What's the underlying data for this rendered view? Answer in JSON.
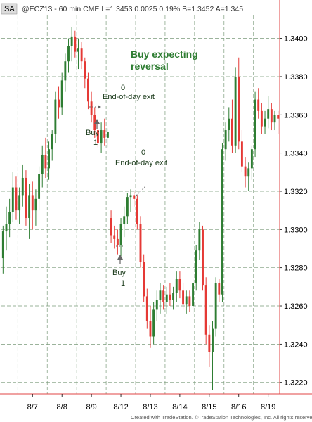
{
  "header": {
    "symbol_tag": "SA",
    "info": "@ECZ13 - 60 min  CME  L=1.3453  0.0025  0.19%  B=1.3452  A=1.345"
  },
  "footer": "Created with TradeStation. ©TradeStation Technologies, Inc. All rights reserved.",
  "colors": {
    "up": "#2e7d32",
    "down": "#e53935",
    "grid": "#7a9a7a",
    "border": "#e24444"
  },
  "chart_data": {
    "type": "candlestick",
    "title": "",
    "xlabel": "",
    "ylabel": "",
    "ylim": [
      1.3214,
      1.3412
    ],
    "yticks": [
      "1.3400",
      "1.3380",
      "1.3360",
      "1.3340",
      "1.3320",
      "1.3300",
      "1.3280",
      "1.3260",
      "1.3240",
      "1.3220"
    ],
    "ytick_values": [
      1.34,
      1.338,
      1.336,
      1.334,
      1.332,
      1.33,
      1.328,
      1.326,
      1.324,
      1.322
    ],
    "grid": true,
    "xticks": [
      "8/7",
      "8/8",
      "8/9",
      "8/12",
      "8/13",
      "8/14",
      "8/15",
      "8/16",
      "8/19"
    ],
    "xtick_index": [
      9,
      18,
      27,
      36,
      45,
      54,
      63,
      72,
      81
    ],
    "day_separators_index": [
      5,
      14,
      23,
      32,
      41,
      50,
      59,
      68,
      77,
      85
    ],
    "candles": [
      {
        "o": 1.3285,
        "h": 1.3302,
        "l": 1.3277,
        "c": 1.3299
      },
      {
        "o": 1.3299,
        "h": 1.3312,
        "l": 1.3289,
        "c": 1.3303
      },
      {
        "o": 1.3303,
        "h": 1.3316,
        "l": 1.3296,
        "c": 1.3309
      },
      {
        "o": 1.3309,
        "h": 1.333,
        "l": 1.3304,
        "c": 1.3322
      },
      {
        "o": 1.3322,
        "h": 1.3328,
        "l": 1.3305,
        "c": 1.331
      },
      {
        "o": 1.331,
        "h": 1.3322,
        "l": 1.3303,
        "c": 1.3318
      },
      {
        "o": 1.3318,
        "h": 1.3334,
        "l": 1.3312,
        "c": 1.3327
      },
      {
        "o": 1.3327,
        "h": 1.3331,
        "l": 1.3302,
        "c": 1.3306
      },
      {
        "o": 1.3306,
        "h": 1.3324,
        "l": 1.3295,
        "c": 1.3318
      },
      {
        "o": 1.3318,
        "h": 1.3325,
        "l": 1.33,
        "c": 1.331
      },
      {
        "o": 1.331,
        "h": 1.3321,
        "l": 1.3302,
        "c": 1.3316
      },
      {
        "o": 1.3316,
        "h": 1.3333,
        "l": 1.331,
        "c": 1.3329
      },
      {
        "o": 1.3329,
        "h": 1.3344,
        "l": 1.3322,
        "c": 1.3339
      },
      {
        "o": 1.3339,
        "h": 1.3348,
        "l": 1.3327,
        "c": 1.3332
      },
      {
        "o": 1.3332,
        "h": 1.3346,
        "l": 1.3326,
        "c": 1.3342
      },
      {
        "o": 1.3342,
        "h": 1.3352,
        "l": 1.3336,
        "c": 1.335
      },
      {
        "o": 1.335,
        "h": 1.3372,
        "l": 1.3345,
        "c": 1.3368
      },
      {
        "o": 1.3368,
        "h": 1.3375,
        "l": 1.3358,
        "c": 1.3364
      },
      {
        "o": 1.3364,
        "h": 1.3382,
        "l": 1.336,
        "c": 1.3378
      },
      {
        "o": 1.3378,
        "h": 1.3392,
        "l": 1.3372,
        "c": 1.3388
      },
      {
        "o": 1.3388,
        "h": 1.34,
        "l": 1.3382,
        "c": 1.3396
      },
      {
        "o": 1.3396,
        "h": 1.3406,
        "l": 1.3388,
        "c": 1.3401
      },
      {
        "o": 1.3401,
        "h": 1.3404,
        "l": 1.339,
        "c": 1.3393
      },
      {
        "o": 1.3393,
        "h": 1.34,
        "l": 1.3384,
        "c": 1.3395
      },
      {
        "o": 1.3395,
        "h": 1.3398,
        "l": 1.3384,
        "c": 1.3388
      },
      {
        "o": 1.3388,
        "h": 1.339,
        "l": 1.3374,
        "c": 1.3379
      },
      {
        "o": 1.3379,
        "h": 1.3382,
        "l": 1.3363,
        "c": 1.3367
      },
      {
        "o": 1.3367,
        "h": 1.3372,
        "l": 1.3356,
        "c": 1.336
      },
      {
        "o": 1.336,
        "h": 1.3364,
        "l": 1.3348,
        "c": 1.3352
      },
      {
        "o": 1.3352,
        "h": 1.3356,
        "l": 1.3343,
        "c": 1.3345
      },
      {
        "o": 1.3345,
        "h": 1.3356,
        "l": 1.334,
        "c": 1.3352
      },
      {
        "o": 1.3352,
        "h": 1.3358,
        "l": 1.3344,
        "c": 1.3348
      },
      {
        "o": 1.3348,
        "h": 1.3353,
        "l": 1.3343,
        "c": 1.3351
      },
      {
        "o": 1.3306,
        "h": 1.331,
        "l": 1.3293,
        "c": 1.3297
      },
      {
        "o": 1.3297,
        "h": 1.3302,
        "l": 1.329,
        "c": 1.3295
      },
      {
        "o": 1.3295,
        "h": 1.33,
        "l": 1.3287,
        "c": 1.3292
      },
      {
        "o": 1.3292,
        "h": 1.3306,
        "l": 1.3286,
        "c": 1.3303
      },
      {
        "o": 1.3303,
        "h": 1.3312,
        "l": 1.3296,
        "c": 1.3307
      },
      {
        "o": 1.3307,
        "h": 1.3319,
        "l": 1.3303,
        "c": 1.3317
      },
      {
        "o": 1.3317,
        "h": 1.3321,
        "l": 1.3309,
        "c": 1.3318
      },
      {
        "o": 1.3318,
        "h": 1.332,
        "l": 1.3312,
        "c": 1.3316
      },
      {
        "o": 1.3316,
        "h": 1.3318,
        "l": 1.33,
        "c": 1.3303
      },
      {
        "o": 1.3303,
        "h": 1.3307,
        "l": 1.328,
        "c": 1.3283
      },
      {
        "o": 1.3283,
        "h": 1.3287,
        "l": 1.3262,
        "c": 1.3265
      },
      {
        "o": 1.3265,
        "h": 1.3269,
        "l": 1.3248,
        "c": 1.3252
      },
      {
        "o": 1.3252,
        "h": 1.326,
        "l": 1.3238,
        "c": 1.3244
      },
      {
        "o": 1.3244,
        "h": 1.3262,
        "l": 1.324,
        "c": 1.3258
      },
      {
        "o": 1.3258,
        "h": 1.3268,
        "l": 1.3252,
        "c": 1.3263
      },
      {
        "o": 1.3263,
        "h": 1.3272,
        "l": 1.3256,
        "c": 1.3268
      },
      {
        "o": 1.3268,
        "h": 1.3271,
        "l": 1.3258,
        "c": 1.3262
      },
      {
        "o": 1.3262,
        "h": 1.327,
        "l": 1.3256,
        "c": 1.3266
      },
      {
        "o": 1.3266,
        "h": 1.3272,
        "l": 1.326,
        "c": 1.3263
      },
      {
        "o": 1.3263,
        "h": 1.327,
        "l": 1.3258,
        "c": 1.3267
      },
      {
        "o": 1.3267,
        "h": 1.3278,
        "l": 1.3262,
        "c": 1.3274
      },
      {
        "o": 1.3274,
        "h": 1.3278,
        "l": 1.3264,
        "c": 1.3268
      },
      {
        "o": 1.3268,
        "h": 1.3272,
        "l": 1.3258,
        "c": 1.3261
      },
      {
        "o": 1.3261,
        "h": 1.3268,
        "l": 1.3256,
        "c": 1.3265
      },
      {
        "o": 1.3265,
        "h": 1.3268,
        "l": 1.3257,
        "c": 1.326
      },
      {
        "o": 1.326,
        "h": 1.3274,
        "l": 1.3256,
        "c": 1.3272
      },
      {
        "o": 1.3272,
        "h": 1.3292,
        "l": 1.3268,
        "c": 1.3289
      },
      {
        "o": 1.3289,
        "h": 1.3304,
        "l": 1.3284,
        "c": 1.33
      },
      {
        "o": 1.33,
        "h": 1.3302,
        "l": 1.3268,
        "c": 1.3271
      },
      {
        "o": 1.3271,
        "h": 1.3275,
        "l": 1.324,
        "c": 1.3245
      },
      {
        "o": 1.3245,
        "h": 1.325,
        "l": 1.3228,
        "c": 1.3236
      },
      {
        "o": 1.3236,
        "h": 1.3252,
        "l": 1.3216,
        "c": 1.3248
      },
      {
        "o": 1.3248,
        "h": 1.3275,
        "l": 1.3244,
        "c": 1.3272
      },
      {
        "o": 1.3272,
        "h": 1.3274,
        "l": 1.3262,
        "c": 1.3266
      },
      {
        "o": 1.3266,
        "h": 1.3345,
        "l": 1.3262,
        "c": 1.3342
      },
      {
        "o": 1.3342,
        "h": 1.3356,
        "l": 1.3336,
        "c": 1.3352
      },
      {
        "o": 1.3352,
        "h": 1.3364,
        "l": 1.3346,
        "c": 1.3358
      },
      {
        "o": 1.3358,
        "h": 1.3368,
        "l": 1.334,
        "c": 1.3344
      },
      {
        "o": 1.3344,
        "h": 1.3385,
        "l": 1.334,
        "c": 1.338
      },
      {
        "o": 1.338,
        "h": 1.339,
        "l": 1.3342,
        "c": 1.3346
      },
      {
        "o": 1.3346,
        "h": 1.3352,
        "l": 1.333,
        "c": 1.3333
      },
      {
        "o": 1.3333,
        "h": 1.3338,
        "l": 1.3322,
        "c": 1.3328
      },
      {
        "o": 1.3328,
        "h": 1.3335,
        "l": 1.332,
        "c": 1.3332
      },
      {
        "o": 1.3332,
        "h": 1.3344,
        "l": 1.3326,
        "c": 1.3342
      },
      {
        "o": 1.3342,
        "h": 1.3372,
        "l": 1.3338,
        "c": 1.3368
      },
      {
        "o": 1.3368,
        "h": 1.3374,
        "l": 1.3358,
        "c": 1.3362
      },
      {
        "o": 1.3362,
        "h": 1.3366,
        "l": 1.335,
        "c": 1.3354
      },
      {
        "o": 1.3354,
        "h": 1.3362,
        "l": 1.335,
        "c": 1.3358
      },
      {
        "o": 1.3358,
        "h": 1.337,
        "l": 1.3353,
        "c": 1.3363
      },
      {
        "o": 1.3363,
        "h": 1.3366,
        "l": 1.3352,
        "c": 1.3356
      },
      {
        "o": 1.3356,
        "h": 1.3362,
        "l": 1.3352,
        "c": 1.336
      },
      {
        "o": 1.336,
        "h": 1.3362,
        "l": 1.335,
        "c": 1.3358
      }
    ],
    "annotations": {
      "main_note_line1": "Buy expecting",
      "main_note_line2": "reversal",
      "exit1_qty": "0",
      "exit1_label": "End-of-day exit",
      "exit2_qty": "0",
      "exit2_label": "End-of-day exit",
      "buy1_label": "Buy",
      "buy1_qty": "1",
      "buy2_label": "Buy",
      "buy2_qty": "1"
    }
  }
}
